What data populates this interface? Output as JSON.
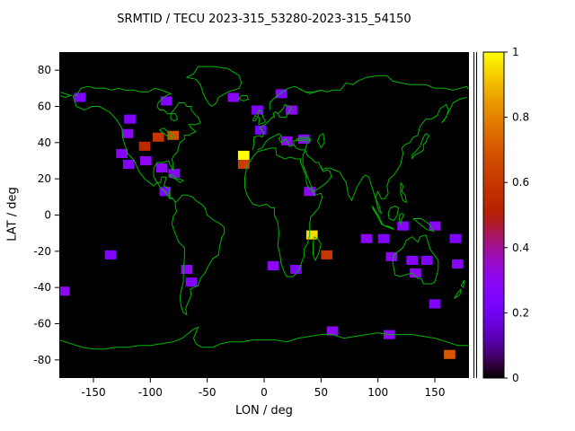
{
  "chart_data": {
    "type": "heatmap",
    "title": "SRMTID / TECU 2023-315_53280-2023-315_54150",
    "xlabel": "LON / deg",
    "ylabel": "LAT / deg",
    "xlim": [
      -180,
      180
    ],
    "ylim": [
      -90,
      90
    ],
    "xticks": [
      -150,
      -100,
      -50,
      0,
      50,
      100,
      150
    ],
    "yticks": [
      80,
      60,
      40,
      20,
      0,
      -20,
      -40,
      -60,
      -80
    ],
    "grid": false,
    "background_color": "#000000",
    "coastline_color": "#00b400",
    "colorbar": {
      "min": 0,
      "max": 1,
      "ticks": [
        0,
        0.2,
        0.4,
        0.6,
        0.8,
        1
      ],
      "tick_labels": [
        "0",
        "0.2",
        "0.4",
        "0.6",
        "0.8",
        "1"
      ],
      "palette": "black-purple-violet-red-orange-yellow (gnuplot pm3d)"
    },
    "cell_size_deg": {
      "lon": 10,
      "lat": 5
    },
    "cells": [
      [
        -162,
        65,
        0.25
      ],
      [
        -86,
        63,
        0.25
      ],
      [
        -27,
        65,
        0.28
      ],
      [
        15,
        67,
        0.25
      ],
      [
        -6,
        58,
        0.25
      ],
      [
        24,
        58,
        0.3
      ],
      [
        -118,
        53,
        0.25
      ],
      [
        -120,
        45,
        0.3
      ],
      [
        -105,
        38,
        0.55
      ],
      [
        -93,
        43,
        0.6
      ],
      [
        -80,
        44,
        0.68
      ],
      [
        -125,
        34,
        0.28
      ],
      [
        -119,
        28,
        0.25
      ],
      [
        -104,
        30,
        0.3
      ],
      [
        -90,
        26,
        0.3
      ],
      [
        -79,
        23,
        0.28
      ],
      [
        -87,
        13,
        0.25
      ],
      [
        -3,
        47,
        0.22
      ],
      [
        20,
        41,
        0.3
      ],
      [
        35,
        42,
        0.28
      ],
      [
        -18,
        33,
        1.0
      ],
      [
        -18,
        28,
        0.62
      ],
      [
        40,
        13,
        0.3
      ],
      [
        42,
        -11,
        0.95
      ],
      [
        55,
        -22,
        0.6
      ],
      [
        8,
        -28,
        0.3
      ],
      [
        28,
        -30,
        0.25
      ],
      [
        -68,
        -30,
        0.3
      ],
      [
        -64,
        -37,
        0.25
      ],
      [
        -135,
        -22,
        0.25
      ],
      [
        -176,
        -42,
        0.3
      ],
      [
        90,
        -13,
        0.3
      ],
      [
        105,
        -13,
        0.25
      ],
      [
        122,
        -6,
        0.28
      ],
      [
        150,
        -6,
        0.3
      ],
      [
        168,
        -13,
        0.25
      ],
      [
        112,
        -23,
        0.3
      ],
      [
        130,
        -25,
        0.28
      ],
      [
        143,
        -25,
        0.25
      ],
      [
        133,
        -32,
        0.3
      ],
      [
        170,
        -27,
        0.28
      ],
      [
        150,
        -49,
        0.25
      ],
      [
        60,
        -64,
        0.3
      ],
      [
        110,
        -66,
        0.3
      ],
      [
        163,
        -77,
        0.7
      ]
    ]
  }
}
